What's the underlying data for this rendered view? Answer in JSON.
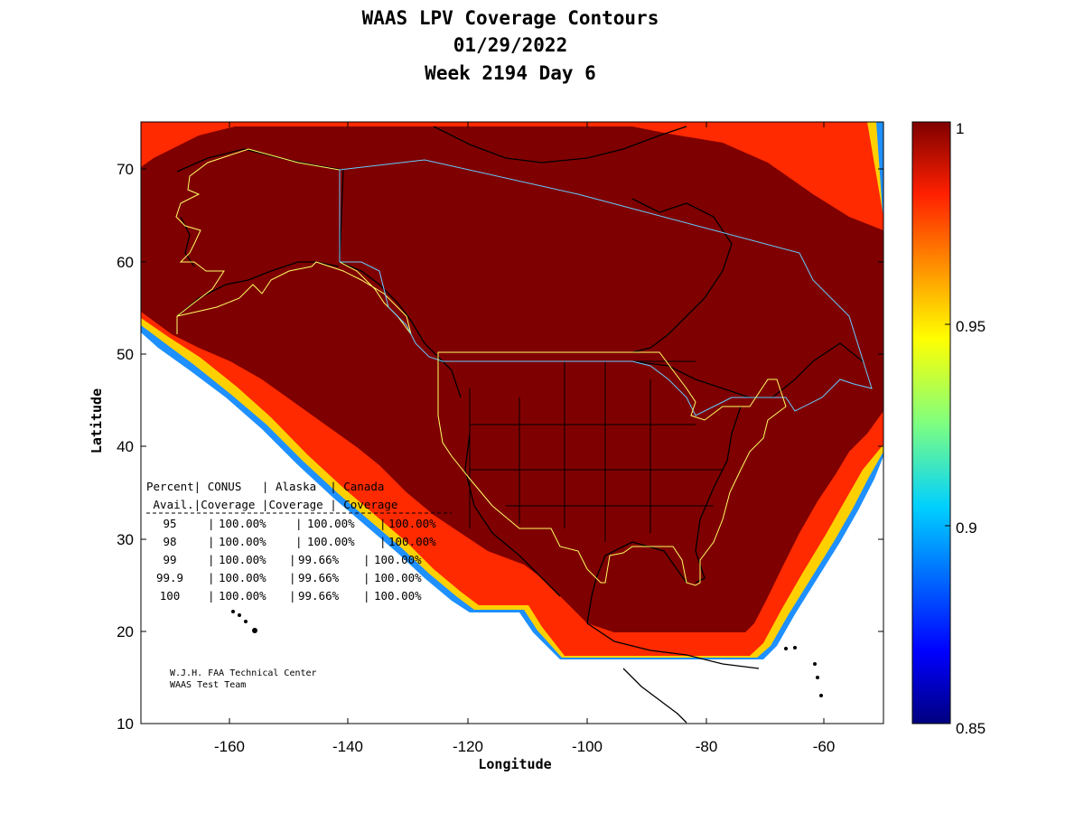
{
  "title": {
    "line1": "WAAS LPV Coverage Contours",
    "line2": "01/29/2022",
    "line3": "Week 2194 Day 6"
  },
  "axes": {
    "xlabel": "Longitude",
    "ylabel": "Latitude",
    "xticks": [
      "-160",
      "-140",
      "-120",
      "-100",
      "-80",
      "-60"
    ],
    "yticks": [
      "70",
      "60",
      "50",
      "40",
      "30",
      "20",
      "10"
    ],
    "xlim": [
      -174,
      -50
    ],
    "ylim": [
      10,
      75
    ]
  },
  "colorbar": {
    "ticks": [
      "1",
      "0.95",
      "0.9",
      "0.85"
    ],
    "range": [
      0.85,
      1
    ]
  },
  "table": {
    "header1": "Percent| CONUS   | Alaska  | Canada",
    "header2": " Avail.|Coverage |Coverage | Coverage",
    "rows": [
      {
        "avail": "95",
        "conus": "100.00%",
        "alaska": "100.00%",
        "canada": "100.00%"
      },
      {
        "avail": "98",
        "conus": "100.00%",
        "alaska": "100.00%",
        "canada": "100.00%"
      },
      {
        "avail": "99",
        "conus": "100.00%",
        "alaska": "99.66%",
        "canada": "100.00%"
      },
      {
        "avail": "99.9",
        "conus": "100.00%",
        "alaska": "99.66%",
        "canada": "100.00%"
      },
      {
        "avail": "100",
        "conus": "100.00%",
        "alaska": "99.66%",
        "canada": "100.00%"
      }
    ]
  },
  "credit": {
    "line1": "W.J.H. FAA Technical Center",
    "line2": "WAAS Test Team"
  },
  "colors": {
    "coverage": "#7f0000",
    "conus_boundary": "#ffff66",
    "canada_boundary": "#66ccff",
    "coastline": "#000000"
  }
}
